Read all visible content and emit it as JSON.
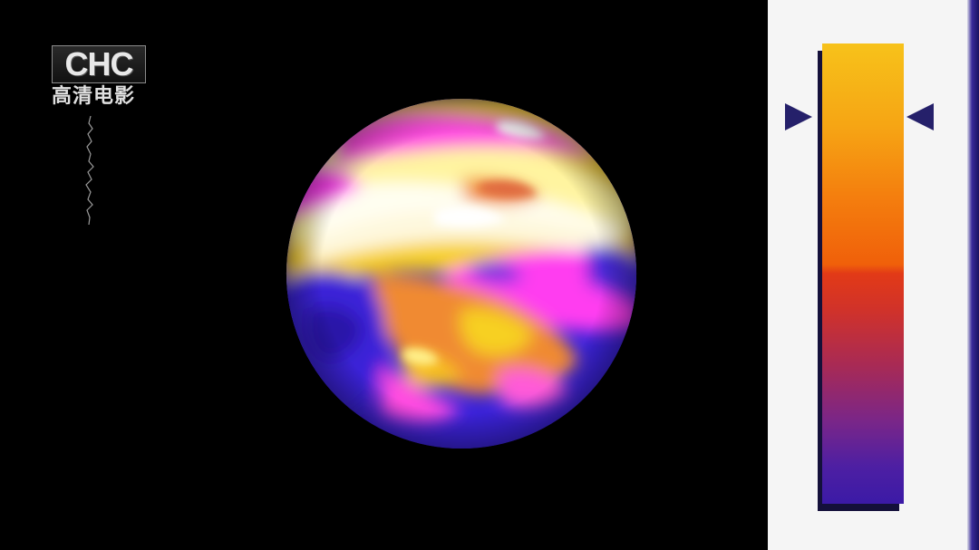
{
  "logo": {
    "letters": "CHC",
    "subtitle": "高清电影"
  },
  "colors": {
    "background": "#000000",
    "panel": "#f5f5f5",
    "marker": "#25206a",
    "scale_top": "#f7c21a",
    "scale_mid": "#e23a17",
    "scale_bottom": "#3b1aa6"
  },
  "scale": {
    "marker_level": 0.15
  }
}
